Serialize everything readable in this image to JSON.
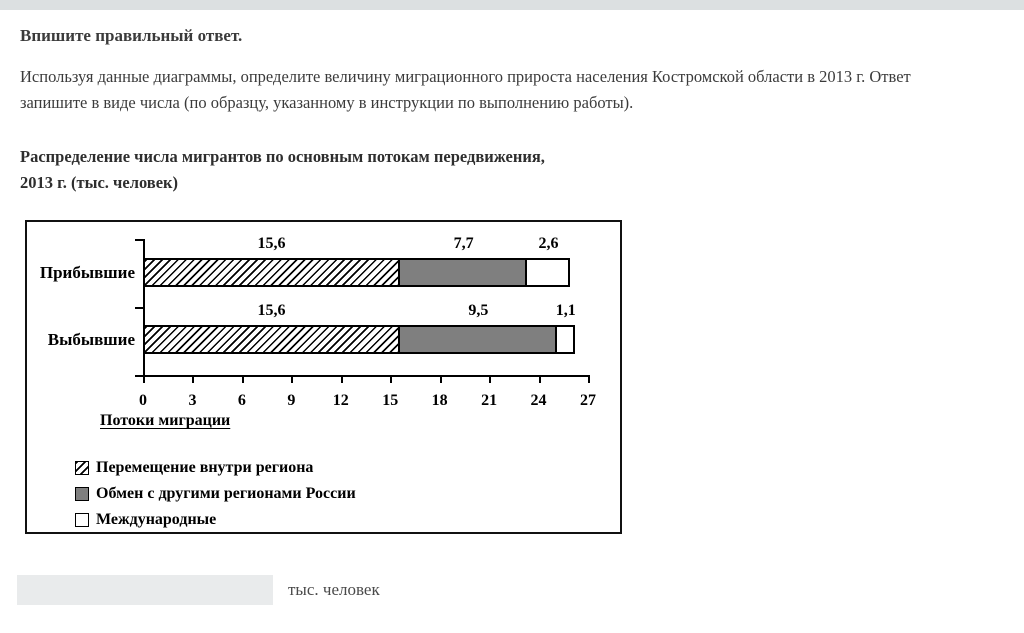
{
  "page": {
    "prompt_heading": "Впишите правильный ответ.",
    "question_lines": [
      "Используя данные диаграммы, определите величину миграционного прироста населения Костромской области в 2013 г. Ответ",
      "запишите в виде числа (по образцу, указанному в инструкции по выполнению работы)."
    ],
    "answer_input_value": "",
    "answer_unit_label": "тыс. человек"
  },
  "chart": {
    "title_lines": [
      "Распределение числа мигрантов по основным потокам передвижения,",
      "2013 г. (тыс. человек)"
    ],
    "axis_label": "Потоки миграции"
  },
  "colors": {
    "top_bar": "#dce0e1",
    "answer_input_bg": "#e9ebec",
    "series_gray": "#7f7f7f",
    "series_white": "#ffffff",
    "chart_border": "#000000"
  },
  "chart_data": {
    "type": "bar",
    "orientation": "horizontal",
    "stacked": true,
    "title": "Распределение числа мигрантов по основным потокам передвижения, 2013 г. (тыс. человек)",
    "categories": [
      "Прибывшие",
      "Выбывшие"
    ],
    "series": [
      {
        "name": "Перемещение внутри региона",
        "values": [
          15.6,
          15.6
        ],
        "fill": "hatch"
      },
      {
        "name": "Обмен с другими регионами России",
        "values": [
          7.7,
          9.5
        ],
        "fill": "#7f7f7f"
      },
      {
        "name": "Международные",
        "values": [
          2.6,
          1.1
        ],
        "fill": "#ffffff"
      }
    ],
    "value_labels": [
      [
        "15,6",
        "7,7",
        "2,6"
      ],
      [
        "15,6",
        "9,5",
        "1,1"
      ]
    ],
    "x_ticks": [
      0,
      3,
      6,
      9,
      12,
      15,
      18,
      21,
      24,
      27
    ],
    "xlim": [
      0,
      27
    ],
    "xlabel": "Потоки миграции",
    "grid": false,
    "legend_position": "bottom-left"
  }
}
